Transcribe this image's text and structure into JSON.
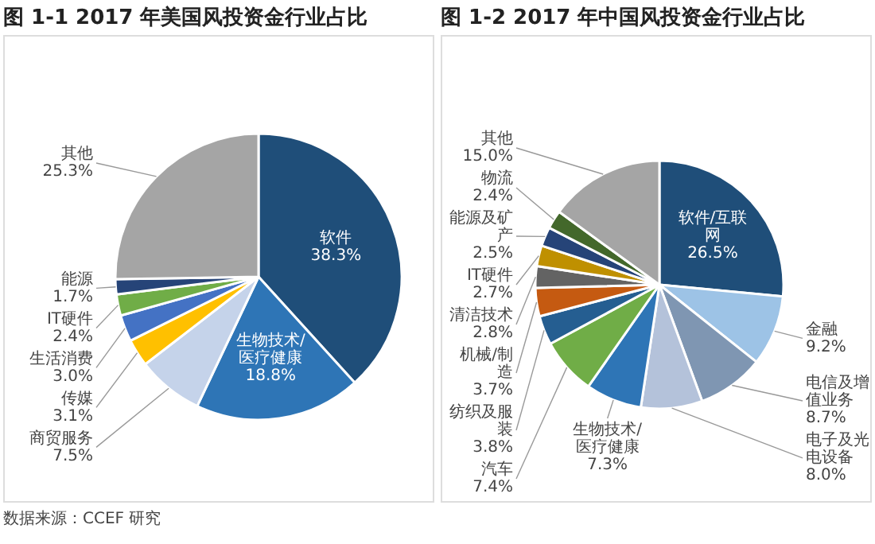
{
  "chart_data": [
    {
      "type": "pie",
      "title": "图 1-1 2017 年美国风投资金行业占比",
      "categories": [
        "软件",
        "生物技术/医疗健康",
        "商贸服务",
        "传媒",
        "生活消费",
        "IT硬件",
        "能源",
        "其他"
      ],
      "values": [
        38.3,
        18.8,
        7.5,
        3.1,
        3.0,
        2.4,
        1.7,
        25.3
      ],
      "value_labels": [
        "38.3%",
        "18.8%",
        "7.5%",
        "3.1%",
        "3.0%",
        "2.4%",
        "1.7%",
        "25.3%"
      ],
      "colors": [
        "#1f4e79",
        "#2e75b6",
        "#c5d3ea",
        "#ffc000",
        "#4472c4",
        "#70ad47",
        "#264478",
        "#a5a5a5"
      ],
      "annotations": [
        "数据来源：CCEF 研究"
      ]
    },
    {
      "type": "pie",
      "title": "图 1-2 2017 年中国风投资金行业占比",
      "categories": [
        "软件/互联网",
        "金融",
        "电信及增值业务",
        "电子及光电设备",
        "生物技术/医疗健康",
        "汽车",
        "纺织及服装",
        "机械/制造",
        "清洁技术",
        "IT硬件",
        "能源及矿产",
        "物流",
        "其他"
      ],
      "values": [
        26.5,
        9.2,
        8.7,
        8.0,
        7.3,
        7.4,
        3.8,
        3.7,
        2.8,
        2.7,
        2.5,
        2.4,
        15.0
      ],
      "value_labels": [
        "26.5%",
        "9.2%",
        "8.7%",
        "8.0%",
        "7.3%",
        "7.4%",
        "3.8%",
        "3.7%",
        "2.8%",
        "2.7%",
        "2.5%",
        "2.4%",
        "15.0%"
      ],
      "colors": [
        "#1f4e79",
        "#9dc3e6",
        "#7f96b2",
        "#b4c2da",
        "#2e75b6",
        "#70ad47",
        "#255e91",
        "#c55a11",
        "#636363",
        "#bf9000",
        "#264478",
        "#43682b",
        "#a5a5a5"
      ]
    }
  ]
}
